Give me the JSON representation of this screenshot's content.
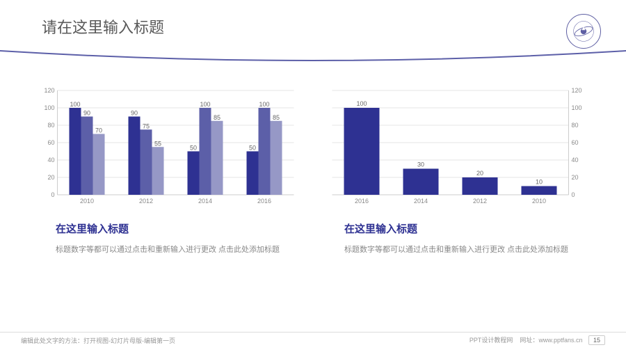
{
  "page_title": "请在这里输入标题",
  "left_chart": {
    "type": "grouped-bar",
    "ylim": [
      0,
      120
    ],
    "ytick_step": 20,
    "categories": [
      "2010",
      "2012",
      "2014",
      "2016"
    ],
    "series_colors": [
      "#2e3192",
      "#5c5fa8",
      "#9698c6"
    ],
    "groups": [
      {
        "values": [
          100,
          90,
          70
        ]
      },
      {
        "values": [
          90,
          75,
          55
        ]
      },
      {
        "values": [
          50,
          100,
          85
        ]
      },
      {
        "values": [
          50,
          100,
          85
        ]
      }
    ],
    "grid_color": "#e5e5e5",
    "axis_color": "#cccccc",
    "label_fontsize": 9,
    "axis_fontsize": 9
  },
  "right_chart": {
    "type": "bar",
    "ylim": [
      0,
      120
    ],
    "ytick_step": 20,
    "categories": [
      "2016",
      "2014",
      "2012",
      "2010"
    ],
    "values": [
      100,
      30,
      20,
      10
    ],
    "bar_color": "#2e3192",
    "grid_color": "#e5e5e5",
    "axis_color": "#cccccc",
    "y_axis_side": "right",
    "label_fontsize": 9,
    "axis_fontsize": 9
  },
  "left_section": {
    "title": "在这里输入标题",
    "desc": "标题数字等都可以通过点击和重新输入进行更改 点击此处添加标题"
  },
  "right_section": {
    "title": "在这里输入标题",
    "desc": "标题数字等都可以通过点击和重新输入进行更改 点击此处添加标题"
  },
  "footer": {
    "left": "编辑此处文字的方法：打开视图-幻灯片母版-编辑第一页",
    "right_label": "PPT设计教程网",
    "right_url_label": "网址：",
    "right_url": "www.pptfans.cn",
    "page_number": "15"
  },
  "colors": {
    "title_text": "#595959",
    "accent": "#2e3192",
    "desc_text": "#888888",
    "footer_text": "#999999"
  }
}
